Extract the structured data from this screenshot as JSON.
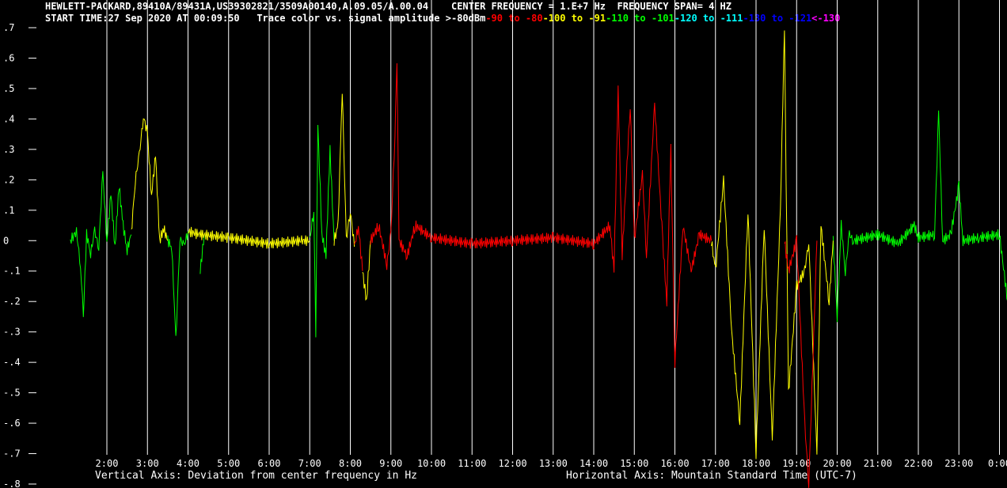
{
  "header": {
    "line1_left": "HEWLETT-PACKARD,89410A/89431A,US39302821/3509A00140,A.09.05/A.00.04",
    "line1_center": "CENTER FREQUENCY = 1.E+7 Hz",
    "line1_span": "FREQUENCY SPAN= 4 HZ",
    "start_time": "START TIME:27 Sep 2020 AT 00:09:50",
    "trace_caption": "Trace color vs. signal amplitude",
    "legend": [
      {
        "label": ">-80dBm",
        "color": "#ffffff"
      },
      {
        "label": "-90 to -80",
        "color": "#ff0000"
      },
      {
        "label": "-100 to -91",
        "color": "#ffff00"
      },
      {
        "label": "-110 to -101",
        "color": "#00ff00"
      },
      {
        "label": "-120 to -111",
        "color": "#00ffff"
      },
      {
        "label": "-130 to -121",
        "color": "#0000ff"
      },
      {
        "label": "<-130",
        "color": "#ff00ff"
      }
    ]
  },
  "chart_data": {
    "type": "line",
    "xlabel": "Horizontal Axis: Mountain Standard Time  (UTC-7)",
    "ylabel": "Vertical Axis: Deviation from center frequency in Hz",
    "ylim": [
      -0.8,
      0.7
    ],
    "xlim": [
      1.1,
      24.2
    ],
    "x_ticks": [
      "2:00",
      "3:00",
      "4:00",
      "5:00",
      "6:00",
      "7:00",
      "8:00",
      "9:00",
      "10:00",
      "11:00",
      "12:00",
      "13:00",
      "14:00",
      "15:00",
      "16:00",
      "17:00",
      "18:00",
      "19:00",
      "20:00",
      "21:00",
      "22:00",
      "23:00",
      "0:00"
    ],
    "y_ticks": [
      ".7",
      ".6",
      ".5",
      ".4",
      ".3",
      ".2",
      ".1",
      "0",
      "-.1",
      "-.2",
      "-.3",
      "-.4",
      "-.5",
      "-.6",
      "-.7",
      "-.8"
    ],
    "grid": "vertical lines at each hour",
    "series": [
      {
        "color": "#00ff00",
        "segments": [
          [
            [
              1.1,
              0.0
            ],
            [
              1.25,
              0.03
            ],
            [
              1.35,
              -0.08
            ],
            [
              1.42,
              -0.25
            ],
            [
              1.5,
              0.02
            ],
            [
              1.6,
              -0.04
            ],
            [
              1.7,
              0.03
            ],
            [
              1.8,
              -0.02
            ],
            [
              1.9,
              0.22
            ],
            [
              2.0,
              0.0
            ],
            [
              2.1,
              0.15
            ],
            [
              2.2,
              -0.02
            ],
            [
              2.3,
              0.18
            ],
            [
              2.4,
              0.05
            ],
            [
              2.5,
              -0.03
            ],
            [
              2.6,
              0.02
            ]
          ],
          [
            [
              3.5,
              0.0
            ],
            [
              3.6,
              -0.02
            ],
            [
              3.7,
              -0.33
            ],
            [
              3.8,
              0.01
            ],
            [
              3.9,
              -0.02
            ],
            [
              4.0,
              0.03
            ]
          ],
          [
            [
              4.3,
              -0.1
            ],
            [
              4.4,
              0.02
            ]
          ],
          [
            [
              7.0,
              0.0
            ],
            [
              7.1,
              0.1
            ],
            [
              7.15,
              -0.3
            ],
            [
              7.2,
              0.38
            ],
            [
              7.3,
              0.02
            ],
            [
              7.4,
              -0.05
            ],
            [
              7.5,
              0.3
            ],
            [
              7.6,
              0.0
            ]
          ],
          [
            [
              19.9,
              0.0
            ],
            [
              20.0,
              -0.25
            ],
            [
              20.1,
              0.05
            ],
            [
              20.2,
              -0.1
            ],
            [
              20.3,
              0.02
            ],
            [
              20.4,
              0.0
            ],
            [
              21.0,
              0.02
            ],
            [
              21.5,
              -0.01
            ],
            [
              21.9,
              0.05
            ],
            [
              22.0,
              0.01
            ],
            [
              22.4,
              0.02
            ],
            [
              22.5,
              0.42
            ],
            [
              22.6,
              0.0
            ],
            [
              22.8,
              0.02
            ],
            [
              23.0,
              0.18
            ],
            [
              23.1,
              0.0
            ],
            [
              23.5,
              0.01
            ],
            [
              24.0,
              0.02
            ],
            [
              24.2,
              -0.2
            ]
          ]
        ]
      },
      {
        "color": "#ffff00",
        "segments": [
          [
            [
              2.6,
              0.02
            ],
            [
              2.7,
              0.2
            ],
            [
              2.8,
              0.28
            ],
            [
              2.9,
              0.41
            ],
            [
              3.0,
              0.35
            ],
            [
              3.1,
              0.15
            ],
            [
              3.2,
              0.28
            ],
            [
              3.3,
              0.0
            ],
            [
              3.4,
              0.04
            ],
            [
              3.5,
              0.0
            ]
          ],
          [
            [
              4.0,
              0.03
            ],
            [
              4.3,
              0.02
            ],
            [
              5.0,
              0.01
            ],
            [
              6.0,
              -0.01
            ],
            [
              6.8,
              0.0
            ],
            [
              7.0,
              0.0
            ]
          ],
          [
            [
              7.6,
              0.0
            ],
            [
              7.7,
              0.05
            ],
            [
              7.8,
              0.5
            ],
            [
              7.9,
              0.0
            ],
            [
              8.0,
              0.1
            ],
            [
              8.1,
              -0.02
            ]
          ],
          [
            [
              8.3,
              -0.1
            ],
            [
              8.4,
              -0.2
            ],
            [
              8.5,
              0.0
            ]
          ],
          [
            [
              16.9,
              0.0
            ],
            [
              17.0,
              -0.1
            ],
            [
              17.2,
              0.2
            ],
            [
              17.4,
              -0.3
            ],
            [
              17.6,
              -0.6
            ],
            [
              17.8,
              0.1
            ],
            [
              18.0,
              -0.7
            ],
            [
              18.2,
              0.05
            ],
            [
              18.4,
              -0.65
            ],
            [
              18.6,
              0.1
            ],
            [
              18.7,
              0.7
            ],
            [
              18.8,
              -0.5
            ],
            [
              19.0,
              -0.15
            ],
            [
              19.2,
              -0.1
            ],
            [
              19.3,
              0.0
            ],
            [
              19.5,
              -0.7
            ],
            [
              19.6,
              0.05
            ],
            [
              19.8,
              -0.2
            ],
            [
              19.9,
              0.0
            ]
          ]
        ]
      },
      {
        "color": "#ff0000",
        "segments": [
          [
            [
              8.1,
              -0.02
            ],
            [
              8.2,
              0.05
            ],
            [
              8.3,
              -0.1
            ]
          ],
          [
            [
              8.5,
              0.0
            ],
            [
              8.7,
              0.05
            ],
            [
              8.9,
              -0.08
            ],
            [
              9.0,
              0.02
            ],
            [
              9.1,
              0.35
            ],
            [
              9.15,
              0.6
            ],
            [
              9.2,
              0.0
            ],
            [
              9.4,
              -0.05
            ],
            [
              9.6,
              0.05
            ],
            [
              10.0,
              0.01
            ],
            [
              11.0,
              -0.01
            ],
            [
              12.0,
              0.0
            ],
            [
              13.0,
              0.01
            ],
            [
              14.0,
              -0.01
            ],
            [
              14.4,
              0.05
            ],
            [
              14.5,
              -0.1
            ],
            [
              14.6,
              0.5
            ],
            [
              14.7,
              -0.05
            ],
            [
              14.9,
              0.45
            ],
            [
              15.0,
              0.0
            ],
            [
              15.2,
              0.22
            ],
            [
              15.3,
              -0.05
            ],
            [
              15.5,
              0.45
            ],
            [
              15.7,
              0.0
            ],
            [
              15.8,
              -0.2
            ],
            [
              15.9,
              0.3
            ],
            [
              16.0,
              -0.4
            ],
            [
              16.2,
              0.05
            ],
            [
              16.4,
              -0.1
            ],
            [
              16.6,
              0.02
            ],
            [
              16.9,
              0.0
            ]
          ],
          [
            [
              18.7,
              0.0
            ],
            [
              18.8,
              -0.1
            ],
            [
              19.0,
              0.0
            ],
            [
              19.2,
              -0.6
            ],
            [
              19.3,
              -0.8
            ],
            [
              19.5,
              0.0
            ]
          ]
        ]
      }
    ]
  }
}
